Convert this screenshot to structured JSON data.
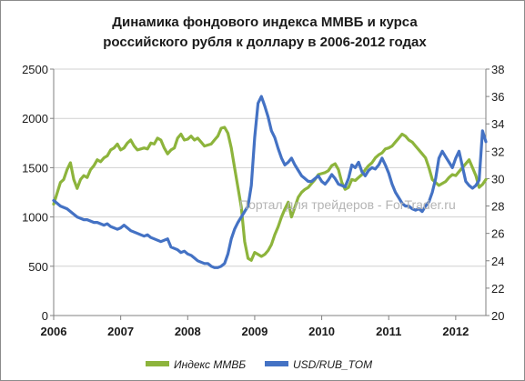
{
  "chart_data": {
    "type": "line",
    "title_lines": [
      "Динамика фондового индекса ММВБ и курса",
      "российского рубля к доллару в 2006-2012 годах"
    ],
    "watermark": "Портал для трейдеров - ForTrader.ru",
    "x_ticks": [
      "2006",
      "2007",
      "2008",
      "2009",
      "2010",
      "2011",
      "2012"
    ],
    "xlim": [
      2006.0,
      2012.45
    ],
    "y_left": {
      "ticks": [
        "0",
        "500",
        "1000",
        "1500",
        "2000",
        "2500"
      ],
      "lim": [
        0,
        2500
      ]
    },
    "y_right": {
      "ticks": [
        "20",
        "22",
        "24",
        "26",
        "28",
        "30",
        "32",
        "34",
        "36",
        "38"
      ],
      "lim": [
        20,
        38
      ]
    },
    "legend_position": "bottom",
    "grid": "horizontal",
    "series": [
      {
        "name": "Индекс ММВБ",
        "axis": "left",
        "color": "#8db43c",
        "x": [
          2006.0,
          2006.05,
          2006.1,
          2006.15,
          2006.2,
          2006.25,
          2006.3,
          2006.35,
          2006.4,
          2006.45,
          2006.5,
          2006.55,
          2006.6,
          2006.65,
          2006.7,
          2006.75,
          2006.8,
          2006.85,
          2006.9,
          2006.95,
          2007.0,
          2007.05,
          2007.1,
          2007.15,
          2007.2,
          2007.25,
          2007.3,
          2007.35,
          2007.4,
          2007.45,
          2007.5,
          2007.55,
          2007.6,
          2007.65,
          2007.7,
          2007.75,
          2007.8,
          2007.85,
          2007.9,
          2007.95,
          2008.0,
          2008.05,
          2008.1,
          2008.15,
          2008.2,
          2008.25,
          2008.3,
          2008.35,
          2008.4,
          2008.45,
          2008.5,
          2008.55,
          2008.6,
          2008.65,
          2008.7,
          2008.75,
          2008.8,
          2008.85,
          2008.9,
          2008.95,
          2009.0,
          2009.05,
          2009.1,
          2009.15,
          2009.2,
          2009.25,
          2009.3,
          2009.35,
          2009.4,
          2009.45,
          2009.5,
          2009.55,
          2009.6,
          2009.65,
          2009.7,
          2009.75,
          2009.8,
          2009.85,
          2009.9,
          2009.95,
          2010.0,
          2010.05,
          2010.1,
          2010.15,
          2010.2,
          2010.25,
          2010.3,
          2010.35,
          2010.4,
          2010.45,
          2010.5,
          2010.55,
          2010.6,
          2010.65,
          2010.7,
          2010.75,
          2010.8,
          2010.85,
          2010.9,
          2010.95,
          2011.0,
          2011.05,
          2011.1,
          2011.15,
          2011.2,
          2011.25,
          2011.3,
          2011.35,
          2011.4,
          2011.45,
          2011.5,
          2011.55,
          2011.6,
          2011.65,
          2011.7,
          2011.75,
          2011.8,
          2011.85,
          2011.9,
          2011.95,
          2012.0,
          2012.05,
          2012.1,
          2012.15,
          2012.2,
          2012.25,
          2012.3,
          2012.35,
          2012.4,
          2012.45
        ],
        "values": [
          1130,
          1240,
          1350,
          1380,
          1480,
          1550,
          1380,
          1290,
          1380,
          1420,
          1400,
          1480,
          1520,
          1580,
          1560,
          1600,
          1620,
          1680,
          1700,
          1740,
          1680,
          1700,
          1750,
          1780,
          1720,
          1680,
          1690,
          1700,
          1690,
          1750,
          1740,
          1800,
          1780,
          1700,
          1640,
          1680,
          1700,
          1800,
          1840,
          1780,
          1790,
          1820,
          1780,
          1800,
          1760,
          1720,
          1730,
          1740,
          1780,
          1820,
          1900,
          1910,
          1850,
          1700,
          1500,
          1300,
          1100,
          750,
          580,
          560,
          640,
          620,
          600,
          620,
          660,
          720,
          820,
          900,
          1000,
          1080,
          1150,
          1000,
          1100,
          1200,
          1250,
          1280,
          1300,
          1340,
          1380,
          1430,
          1440,
          1450,
          1470,
          1520,
          1540,
          1480,
          1350,
          1280,
          1300,
          1380,
          1370,
          1400,
          1430,
          1480,
          1520,
          1550,
          1600,
          1630,
          1650,
          1690,
          1700,
          1720,
          1760,
          1800,
          1840,
          1820,
          1780,
          1760,
          1720,
          1680,
          1640,
          1600,
          1500,
          1380,
          1350,
          1320,
          1340,
          1360,
          1400,
          1430,
          1420,
          1460,
          1500,
          1540,
          1580,
          1500,
          1420,
          1300,
          1330,
          1380
        ]
      },
      {
        "name": "USD/RUB_TOM",
        "axis": "right",
        "color": "#4472c4",
        "x": [
          2006.0,
          2006.05,
          2006.1,
          2006.15,
          2006.2,
          2006.25,
          2006.3,
          2006.35,
          2006.4,
          2006.45,
          2006.5,
          2006.55,
          2006.6,
          2006.65,
          2006.7,
          2006.75,
          2006.8,
          2006.85,
          2006.9,
          2006.95,
          2007.0,
          2007.05,
          2007.1,
          2007.15,
          2007.2,
          2007.25,
          2007.3,
          2007.35,
          2007.4,
          2007.45,
          2007.5,
          2007.55,
          2007.6,
          2007.65,
          2007.7,
          2007.75,
          2007.8,
          2007.85,
          2007.9,
          2007.95,
          2008.0,
          2008.05,
          2008.1,
          2008.15,
          2008.2,
          2008.25,
          2008.3,
          2008.35,
          2008.4,
          2008.45,
          2008.5,
          2008.55,
          2008.6,
          2008.65,
          2008.7,
          2008.75,
          2008.8,
          2008.85,
          2008.9,
          2008.95,
          2009.0,
          2009.05,
          2009.1,
          2009.15,
          2009.2,
          2009.25,
          2009.3,
          2009.35,
          2009.4,
          2009.45,
          2009.5,
          2009.55,
          2009.6,
          2009.65,
          2009.7,
          2009.75,
          2009.8,
          2009.85,
          2009.9,
          2009.95,
          2010.0,
          2010.05,
          2010.1,
          2010.15,
          2010.2,
          2010.25,
          2010.3,
          2010.35,
          2010.4,
          2010.45,
          2010.5,
          2010.55,
          2010.6,
          2010.65,
          2010.7,
          2010.75,
          2010.8,
          2010.85,
          2010.9,
          2010.95,
          2011.0,
          2011.05,
          2011.1,
          2011.15,
          2011.2,
          2011.25,
          2011.3,
          2011.35,
          2011.4,
          2011.45,
          2011.5,
          2011.55,
          2011.6,
          2011.65,
          2011.7,
          2011.75,
          2011.8,
          2011.85,
          2011.9,
          2011.95,
          2012.0,
          2012.05,
          2012.1,
          2012.15,
          2012.2,
          2012.25,
          2012.3,
          2012.35,
          2012.4,
          2012.45
        ],
        "values": [
          28.4,
          28.2,
          28.0,
          27.9,
          27.8,
          27.6,
          27.4,
          27.2,
          27.1,
          27.0,
          27.0,
          26.9,
          26.8,
          26.8,
          26.7,
          26.6,
          26.7,
          26.5,
          26.4,
          26.3,
          26.4,
          26.6,
          26.4,
          26.2,
          26.1,
          26.0,
          25.9,
          25.8,
          25.9,
          25.7,
          25.6,
          25.5,
          25.4,
          25.5,
          25.6,
          25.0,
          24.9,
          24.8,
          24.6,
          24.7,
          24.5,
          24.4,
          24.2,
          24.0,
          23.9,
          23.8,
          23.8,
          23.6,
          23.5,
          23.5,
          23.6,
          23.8,
          24.5,
          25.6,
          26.3,
          26.8,
          27.2,
          27.6,
          28.0,
          29.5,
          33.0,
          35.5,
          36.0,
          35.3,
          34.5,
          33.5,
          33.0,
          32.2,
          31.5,
          31.0,
          31.2,
          31.5,
          31.0,
          30.6,
          30.2,
          30.0,
          29.8,
          29.8,
          30.0,
          30.2,
          29.8,
          29.6,
          29.9,
          30.3,
          30.0,
          29.6,
          29.5,
          29.4,
          30.0,
          31.0,
          30.8,
          31.2,
          30.5,
          30.2,
          30.6,
          30.8,
          30.7,
          31.0,
          31.5,
          31.0,
          30.4,
          29.6,
          29.0,
          28.6,
          28.2,
          28.0,
          28.0,
          27.8,
          27.7,
          27.8,
          27.6,
          28.0,
          28.3,
          29.0,
          30.0,
          31.5,
          32.0,
          31.6,
          31.2,
          30.8,
          31.5,
          32.0,
          30.9,
          29.8,
          29.5,
          29.3,
          29.5,
          29.9,
          33.5,
          32.7
        ]
      }
    ]
  }
}
